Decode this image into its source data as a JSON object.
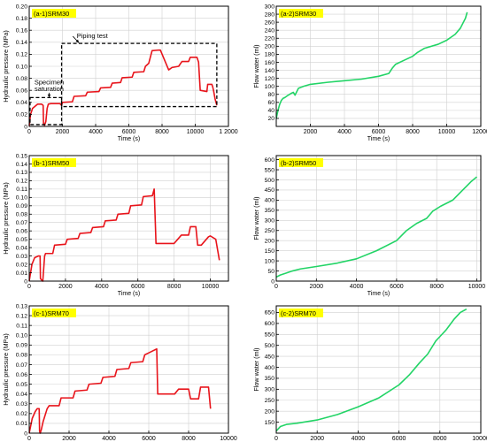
{
  "colors": {
    "pressure": "#e8141b",
    "flow": "#22d466",
    "badge": "#ffff00",
    "axis": "#000000",
    "grid": "#d0d0d0"
  },
  "chart_data": [
    {
      "id": "a1",
      "type": "line",
      "badge": "(a-1)SRM30",
      "xlabel": "Time (s)",
      "ylabel": "Hydraulic pressure (MPa)",
      "xlim": [
        0,
        12000
      ],
      "ylim": [
        0,
        0.2
      ],
      "xticks": [
        0,
        2000,
        4000,
        6000,
        8000,
        10000,
        12000
      ],
      "xtick_labels": [
        "0",
        "2000",
        "4000",
        "6000",
        "8000",
        "10000",
        "1 2000"
      ],
      "yticks": [
        0,
        0.02,
        0.04,
        0.06,
        0.08,
        0.1,
        0.12,
        0.14,
        0.16,
        0.18,
        0.2
      ],
      "ytick_labels": [
        "0",
        "0.02",
        "0.04",
        "0.06",
        "0.08",
        "0.10",
        "0.12",
        "0.14",
        "0.16",
        "0.18",
        "0.20"
      ],
      "grid": true,
      "color_key": "pressure",
      "annotations": [
        {
          "text": "Piping test",
          "at": [
            3800,
            0.147
          ],
          "arrow_to": [
            3000,
            0.139
          ]
        },
        {
          "text": "Specimen",
          "at": [
            1200,
            0.07
          ]
        },
        {
          "text": "saturation",
          "at": [
            1200,
            0.059
          ],
          "arrow_to": [
            1200,
            0.048
          ]
        }
      ],
      "boxes": [
        {
          "x0": 50,
          "x1": 1950,
          "y0": 0.003,
          "y1": 0.048
        },
        {
          "x0": 1950,
          "x1": 11300,
          "y0": 0.033,
          "y1": 0.138
        }
      ],
      "x": [
        0,
        80,
        200,
        500,
        750,
        840,
        860,
        920,
        1000,
        1080,
        1150,
        1300,
        1850,
        1950,
        2000,
        2600,
        2700,
        3400,
        3500,
        4200,
        4300,
        4900,
        5000,
        5500,
        5600,
        6200,
        6300,
        6900,
        7000,
        7200,
        7400,
        7800,
        7900,
        8400,
        8600,
        9000,
        9200,
        9600,
        9700,
        10100,
        10200,
        10300,
        10700,
        10750,
        11000,
        11050,
        11100,
        11200,
        11300
      ],
      "y": [
        0.001,
        0.02,
        0.03,
        0.037,
        0.037,
        0.035,
        0.005,
        0.002,
        0.008,
        0.03,
        0.037,
        0.038,
        0.038,
        0.035,
        0.04,
        0.041,
        0.05,
        0.051,
        0.057,
        0.058,
        0.064,
        0.065,
        0.072,
        0.073,
        0.081,
        0.082,
        0.09,
        0.091,
        0.1,
        0.105,
        0.126,
        0.127,
        0.127,
        0.094,
        0.098,
        0.1,
        0.108,
        0.108,
        0.115,
        0.115,
        0.107,
        0.06,
        0.058,
        0.07,
        0.07,
        0.066,
        0.06,
        0.045,
        0.035
      ]
    },
    {
      "id": "a2",
      "type": "line",
      "badge": "(a-2)SRM30",
      "xlabel": "Time (s)",
      "ylabel": "Flow water (ml)",
      "xlim": [
        0,
        12000
      ],
      "ylim": [
        0,
        300
      ],
      "xticks": [
        2000,
        4000,
        6000,
        8000,
        10000,
        12000
      ],
      "xtick_labels": [
        "2000",
        "4000",
        "6000",
        "8000",
        "10000",
        "12000"
      ],
      "yticks": [
        20,
        40,
        60,
        80,
        100,
        120,
        140,
        160,
        180,
        200,
        220,
        240,
        260,
        280,
        300
      ],
      "ytick_labels": [
        "20",
        "40",
        "60",
        "80",
        "100",
        "120",
        "140",
        "160",
        "180",
        "200",
        "220",
        "240",
        "260",
        "280",
        "300"
      ],
      "grid": true,
      "color_key": "flow",
      "annotations": [],
      "boxes": [],
      "x": [
        0,
        100,
        200,
        300,
        400,
        500,
        700,
        900,
        1000,
        1100,
        1300,
        1600,
        2000,
        3000,
        4000,
        5000,
        6000,
        6600,
        6800,
        7000,
        7500,
        8000,
        8300,
        8700,
        9500,
        10000,
        10500,
        10800,
        11100,
        11200
      ],
      "y": [
        20,
        40,
        55,
        65,
        70,
        72,
        78,
        83,
        85,
        78,
        95,
        100,
        105,
        110,
        114,
        118,
        125,
        132,
        145,
        155,
        165,
        175,
        185,
        195,
        205,
        215,
        230,
        245,
        270,
        285
      ]
    },
    {
      "id": "b1",
      "type": "line",
      "badge": "(b-1)SRM50",
      "xlabel": "Time (s)",
      "ylabel": "Hydraulic pressure (MPa)",
      "xlim": [
        0,
        11000
      ],
      "ylim": [
        0,
        0.15
      ],
      "xticks": [
        0,
        2000,
        4000,
        6000,
        8000,
        10000
      ],
      "xtick_labels": [
        "0",
        "2000",
        "4000",
        "6000",
        "8000",
        "10000"
      ],
      "yticks": [
        0,
        0.01,
        0.02,
        0.03,
        0.04,
        0.05,
        0.06,
        0.07,
        0.08,
        0.09,
        0.1,
        0.11,
        0.12,
        0.13,
        0.14,
        0.15
      ],
      "ytick_labels": [
        "0",
        "0.01",
        "0.02",
        "0.03",
        "0.04",
        "0.05",
        "0.06",
        "0.07",
        "0.08",
        "0.09",
        "0.10",
        "0.11",
        "0.12",
        "0.13",
        "0.14",
        "0.15"
      ],
      "grid": true,
      "color_key": "pressure",
      "annotations": [],
      "boxes": [],
      "x": [
        0,
        150,
        300,
        500,
        600,
        620,
        700,
        750,
        850,
        900,
        1300,
        1400,
        2000,
        2100,
        2700,
        2800,
        3400,
        3500,
        4100,
        4200,
        4800,
        4900,
        5500,
        5600,
        6200,
        6300,
        6800,
        6900,
        7000,
        8000,
        8200,
        8400,
        8800,
        8900,
        9200,
        9300,
        9500,
        9900,
        10000,
        10300,
        10500
      ],
      "y": [
        0,
        0.02,
        0.028,
        0.03,
        0.03,
        0.003,
        0.001,
        0.0,
        0.03,
        0.033,
        0.033,
        0.043,
        0.044,
        0.05,
        0.051,
        0.057,
        0.058,
        0.064,
        0.065,
        0.072,
        0.073,
        0.08,
        0.081,
        0.09,
        0.091,
        0.101,
        0.102,
        0.11,
        0.045,
        0.045,
        0.05,
        0.055,
        0.055,
        0.065,
        0.065,
        0.043,
        0.043,
        0.053,
        0.054,
        0.05,
        0.025
      ]
    },
    {
      "id": "b2",
      "type": "line",
      "badge": "(b-2)SRM50",
      "xlabel": "Time (s)",
      "ylabel": "Flow water (ml)",
      "xlim": [
        0,
        10200
      ],
      "ylim": [
        0,
        620
      ],
      "xticks": [
        0,
        2000,
        4000,
        6000,
        8000,
        10000
      ],
      "xtick_labels": [
        "0",
        "2000",
        "4000",
        "6000",
        "8000",
        "10000"
      ],
      "yticks": [
        0,
        50,
        100,
        150,
        200,
        250,
        300,
        350,
        400,
        450,
        500,
        550,
        600
      ],
      "ytick_labels": [
        "0",
        "50",
        "100",
        "150",
        "200",
        "250",
        "300",
        "350",
        "400",
        "450",
        "500",
        "550",
        "600"
      ],
      "grid": true,
      "color_key": "flow",
      "annotations": [],
      "boxes": [],
      "x": [
        0,
        200,
        500,
        800,
        1200,
        2000,
        3000,
        4000,
        5000,
        6000,
        6500,
        7000,
        7500,
        7800,
        8200,
        8800,
        9300,
        9700,
        10000
      ],
      "y": [
        20,
        30,
        40,
        50,
        60,
        72,
        88,
        110,
        150,
        200,
        250,
        285,
        310,
        345,
        370,
        400,
        450,
        490,
        515
      ]
    },
    {
      "id": "c1",
      "type": "line",
      "badge": "(c-1)SRM70",
      "xlabel": "Time (s)",
      "ylabel": "Hydraulic pressure (MPa)",
      "xlim": [
        0,
        10000
      ],
      "ylim": [
        0,
        0.13
      ],
      "xticks": [
        0,
        2000,
        4000,
        6000,
        8000,
        10000
      ],
      "xtick_labels": [
        "0",
        "2000",
        "4000",
        "6000",
        "8000",
        "10000"
      ],
      "yticks": [
        0,
        0.01,
        0.02,
        0.03,
        0.04,
        0.05,
        0.06,
        0.07,
        0.08,
        0.09,
        0.1,
        0.11,
        0.12,
        0.13
      ],
      "ytick_labels": [
        "0",
        "0.01",
        "0.02",
        "0.03",
        "0.04",
        "0.05",
        "0.06",
        "0.07",
        "0.08",
        "0.09",
        "0.10",
        "0.11",
        "0.12",
        "0.13"
      ],
      "grid": true,
      "color_key": "pressure",
      "annotations": [],
      "boxes": [],
      "x": [
        0,
        150,
        300,
        400,
        500,
        520,
        550,
        600,
        700,
        900,
        1000,
        1500,
        1600,
        2200,
        2300,
        2900,
        3000,
        3600,
        3700,
        4300,
        4400,
        5000,
        5100,
        5700,
        5800,
        6000,
        6200,
        6400,
        6450,
        7300,
        7500,
        8000,
        8100,
        8500,
        8600,
        9000,
        9100
      ],
      "y": [
        0,
        0.015,
        0.022,
        0.025,
        0.025,
        0.002,
        0.0,
        0.003,
        0.012,
        0.025,
        0.028,
        0.028,
        0.036,
        0.036,
        0.043,
        0.044,
        0.05,
        0.051,
        0.057,
        0.058,
        0.065,
        0.066,
        0.072,
        0.073,
        0.08,
        0.082,
        0.084,
        0.086,
        0.04,
        0.04,
        0.045,
        0.045,
        0.035,
        0.035,
        0.047,
        0.047,
        0.025
      ]
    },
    {
      "id": "c2",
      "type": "line",
      "badge": "(c-2)SRM70",
      "xlabel": "Time (s)",
      "ylabel": "Flow water (ml)",
      "xlim": [
        0,
        10000
      ],
      "ylim": [
        100,
        680
      ],
      "xticks": [
        0,
        2000,
        4000,
        6000,
        8000,
        10000
      ],
      "xtick_labels": [
        "0",
        "2000",
        "4000",
        "6000",
        "8000",
        "10000"
      ],
      "yticks": [
        150,
        200,
        250,
        300,
        350,
        400,
        450,
        500,
        550,
        600,
        650
      ],
      "ytick_labels": [
        "150",
        "200",
        "250",
        "300",
        "350",
        "400",
        "450",
        "500",
        "550",
        "600",
        "650"
      ],
      "grid": true,
      "color_key": "flow",
      "annotations": [],
      "boxes": [],
      "x": [
        0,
        200,
        500,
        1000,
        2000,
        3000,
        4000,
        5000,
        6000,
        6500,
        7000,
        7400,
        7800,
        8000,
        8300,
        8700,
        9000,
        9300
      ],
      "y": [
        110,
        130,
        140,
        145,
        160,
        185,
        220,
        260,
        320,
        365,
        420,
        460,
        520,
        540,
        570,
        620,
        650,
        665
      ]
    }
  ]
}
